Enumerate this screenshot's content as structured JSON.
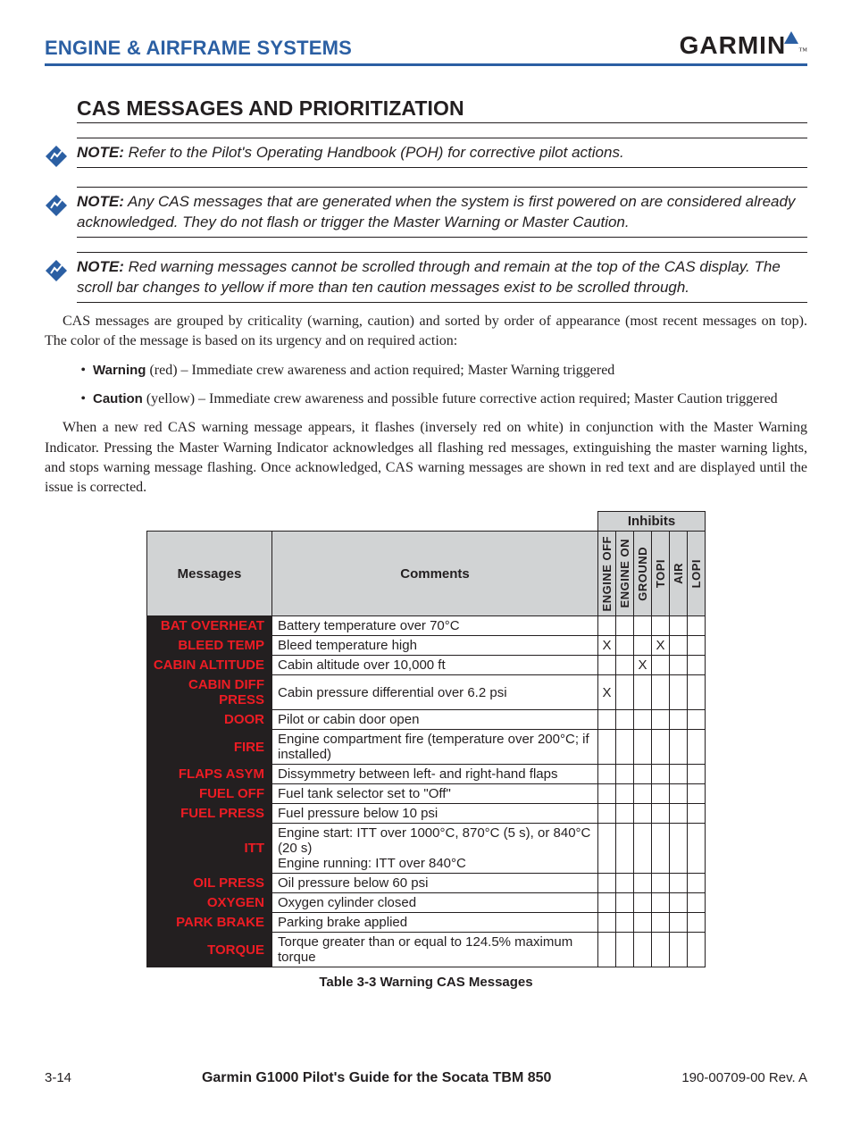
{
  "colors": {
    "brand_blue": "#2b5fa3",
    "text": "#231f20",
    "table_header_bg": "#d1d3d4",
    "msg_bg": "#231f20",
    "msg_fg_red": "#ed1c24"
  },
  "header": {
    "section": "ENGINE & AIRFRAME SYSTEMS",
    "logo_text": "GARMIN"
  },
  "title": "CAS MESSAGES AND PRIORITIZATION",
  "notes": [
    {
      "label": "NOTE:",
      "text": " Refer to the Pilot's Operating Handbook (POH) for corrective pilot actions."
    },
    {
      "label": "NOTE:",
      "text": " Any CAS messages that are generated when the system is first powered on are considered already acknowledged.  They do not flash or trigger the Master Warning or Master Caution."
    },
    {
      "label": "NOTE:",
      "text": " Red warning messages cannot be scrolled through and remain at the top of the CAS display.  The scroll bar changes to yellow if more than ten caution messages exist to be scrolled through."
    }
  ],
  "body1": "CAS messages are grouped by criticality (warning, caution) and sorted by order of appearance (most recent messages on top).  The color of the message is based on its urgency and on required action:",
  "bullets": [
    {
      "bold": "Warning",
      "rest": " (red) – Immediate crew awareness and action required; Master Warning triggered"
    },
    {
      "bold": "Caution",
      "rest": " (yellow) – Immediate crew awareness and possible future corrective action required; Master Caution triggered"
    }
  ],
  "body2": "When a new red CAS warning message appears, it flashes (inversely red on white) in conjunction with the Master Warning Indicator.  Pressing the Master Warning Indicator acknowledges all flashing red messages, extinguishing the master warning lights, and stops warning message flashing.  Once acknowledged, CAS warning messages are shown in red text and are displayed until the issue is corrected.",
  "table": {
    "inhibits_label": "Inhibits",
    "col_messages": "Messages",
    "col_comments": "Comments",
    "inhibit_cols": [
      "ENGINE OFF",
      "ENGINE ON",
      "GROUND",
      "TOPI",
      "AIR",
      "LOPI"
    ],
    "rows": [
      {
        "msg": "BAT OVERHEAT",
        "cmt": "Battery temperature over 70°C",
        "inh": [
          "",
          "",
          "",
          "",
          "",
          ""
        ]
      },
      {
        "msg": "BLEED TEMP",
        "cmt": "Bleed temperature high",
        "inh": [
          "X",
          "",
          "",
          "X",
          "",
          ""
        ]
      },
      {
        "msg": "CABIN ALTITUDE",
        "cmt": "Cabin altitude over 10,000 ft",
        "inh": [
          "",
          "",
          "X",
          "",
          "",
          ""
        ]
      },
      {
        "msg": "CABIN DIFF PRESS",
        "cmt": "Cabin pressure differential over 6.2 psi",
        "inh": [
          "X",
          "",
          "",
          "",
          "",
          ""
        ]
      },
      {
        "msg": "DOOR",
        "cmt": "Pilot or cabin door open",
        "inh": [
          "",
          "",
          "",
          "",
          "",
          ""
        ]
      },
      {
        "msg": "FIRE",
        "cmt": "Engine compartment fire (temperature over 200°C; if installed)",
        "inh": [
          "",
          "",
          "",
          "",
          "",
          ""
        ]
      },
      {
        "msg": "FLAPS ASYM",
        "cmt": "Dissymmetry between left- and right-hand flaps",
        "inh": [
          "",
          "",
          "",
          "",
          "",
          ""
        ]
      },
      {
        "msg": "FUEL OFF",
        "cmt": "Fuel tank selector set to \"Off\"",
        "inh": [
          "",
          "",
          "",
          "",
          "",
          ""
        ]
      },
      {
        "msg": "FUEL PRESS",
        "cmt": "Fuel pressure below 10 psi",
        "inh": [
          "",
          "",
          "",
          "",
          "",
          ""
        ]
      },
      {
        "msg": "ITT",
        "cmt": "Engine start: ITT over 1000°C, 870°C (5 s), or 840°C (20 s)\nEngine running: ITT over 840°C",
        "inh": [
          "",
          "",
          "",
          "",
          "",
          ""
        ]
      },
      {
        "msg": "OIL PRESS",
        "cmt": "Oil pressure below 60 psi",
        "inh": [
          "",
          "",
          "",
          "",
          "",
          ""
        ]
      },
      {
        "msg": "OXYGEN",
        "cmt": "Oxygen cylinder closed",
        "inh": [
          "",
          "",
          "",
          "",
          "",
          ""
        ]
      },
      {
        "msg": "PARK BRAKE",
        "cmt": "Parking brake applied",
        "inh": [
          "",
          "",
          "",
          "",
          "",
          ""
        ]
      },
      {
        "msg": "TORQUE",
        "cmt": "Torque greater than or equal to 124.5% maximum torque",
        "inh": [
          "",
          "",
          "",
          "",
          "",
          ""
        ]
      }
    ],
    "caption": "Table 3-3  Warning CAS Messages"
  },
  "footer": {
    "page": "3-14",
    "center": "Garmin G1000 Pilot's Guide for the Socata TBM 850",
    "right": "190-00709-00   Rev. A"
  }
}
